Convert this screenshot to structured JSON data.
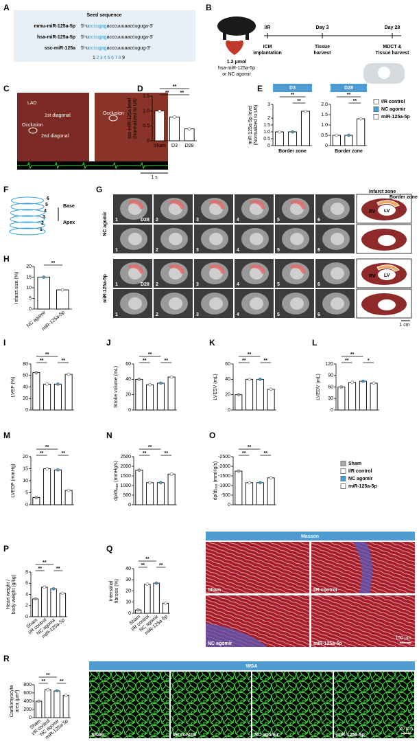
{
  "panel_a": {
    "letter": "A",
    "heading": "Seed sequence",
    "rows": [
      {
        "name": "mmu-miR-125a-5p",
        "prefix": "5'-u",
        "seed": "cccugag",
        "rest": "acccuuuaaccuguga-3'"
      },
      {
        "name": "hsa-miR-125a-5p",
        "prefix": "5'-u",
        "seed": "cccugag",
        "rest": "acccuuuaaccuguga-3'"
      },
      {
        "name": "ssc-miR-125a",
        "prefix": "5'-u",
        "seed": "cccugag",
        "rest": "acccuuuaaccugug-3'"
      }
    ],
    "positions": [
      "1",
      "2345678",
      "9"
    ]
  },
  "panel_b": {
    "letter": "B",
    "dose": [
      "1.2 μmol",
      "hsa-miR-125a-5p",
      "or NC agomir"
    ],
    "timeline": [
      {
        "top": "I/R",
        "bottom": [
          "ICM",
          "implantation"
        ]
      },
      {
        "top": "Day 3",
        "bottom": [
          "Tissue",
          "harvest"
        ]
      },
      {
        "top": "Day 28",
        "bottom": [
          "MDCT &",
          "Tissue harvest"
        ]
      }
    ]
  },
  "panel_c": {
    "letter": "C",
    "labels": [
      "LAD",
      "1st diagonal",
      "Occlusion",
      "2nd diagonal",
      "Occlusion"
    ],
    "scale": "1 s"
  },
  "panel_f": {
    "letter": "F",
    "slices": [
      "1",
      "2",
      "3",
      "4",
      "5",
      "6"
    ],
    "base": "Base",
    "apex": "Apex"
  },
  "panel_g": {
    "letter": "G",
    "groups": [
      "NC agomir",
      "miR-125a-5p"
    ],
    "slices": [
      "1",
      "2",
      "3",
      "4",
      "5",
      "6"
    ],
    "day": "D28",
    "zones": [
      "Infarct zone",
      "Border zone"
    ],
    "chambers": [
      "RV",
      "LV"
    ],
    "scale": "1 cm"
  },
  "charts": [
    {
      "type": "bar",
      "letter": "D",
      "ylabel": [
        "ssc-miR-125a level",
        "(Normalized to U6)"
      ],
      "categories": [
        "Sham",
        "D3",
        "D28"
      ],
      "values": [
        1.0,
        0.8,
        0.4
      ],
      "colors": [
        "#ffffff",
        "#ffffff",
        "#ffffff"
      ],
      "ylim": [
        0,
        1.5
      ],
      "yticks": [
        0,
        0.5,
        {
          "value": 1.0,
          "label": "1.0"
        },
        1.5
      ],
      "annotations": [
        "**",
        "**",
        "**"
      ]
    },
    {
      "type": "bar",
      "letter": "E",
      "header": "D3",
      "ylabel": [
        "miR-125a-5p level",
        "(Normalized to U6)"
      ],
      "xlabel": "Border zone",
      "categories": [
        null,
        null,
        null
      ],
      "values": [
        1.0,
        1.0,
        2.5
      ],
      "colors": [
        "#ffffff",
        "#3aa0d8",
        "#ffffff"
      ],
      "ylim": [
        0,
        3
      ],
      "yticks": [
        0,
        0.5,
        {
          "value": 1.0,
          "label": "1.0"
        },
        1.5,
        2,
        3
      ],
      "annotations": [
        "**",
        "**"
      ]
    },
    {
      "type": "bar",
      "header": "D28",
      "xlabel": "Border zone",
      "categories": [
        null,
        null,
        null
      ],
      "values": [
        0.5,
        0.5,
        1.3
      ],
      "colors": [
        "#ffffff",
        "#3aa0d8",
        "#ffffff"
      ],
      "ylim": [
        0,
        2
      ],
      "yticks": [
        0,
        0.5,
        {
          "value": 1.0,
          "label": "1.0"
        },
        1.5,
        {
          "value": 2,
          "label": "2.0"
        }
      ],
      "annotations": [
        "**",
        "**"
      ]
    },
    {
      "type": "bar",
      "letter": "H",
      "ylabel": [
        "Infarct size (%)"
      ],
      "categories": [
        "NC agomir",
        "miR-125a-5p"
      ],
      "values": [
        15,
        9
      ],
      "colors": [
        "#3aa0d8",
        "#ffffff"
      ],
      "ylim": [
        0,
        20
      ],
      "yticks": [
        0,
        5,
        10,
        15,
        20
      ],
      "annotations": [
        "**"
      ]
    },
    {
      "type": "bar",
      "letter": "I",
      "ylabel": [
        "LVEF (%)"
      ],
      "categories": [
        null,
        null,
        null,
        null
      ],
      "values": [
        65,
        45,
        45,
        62
      ],
      "colors": [
        "#aaaaaa",
        "#ffffff",
        "#3aa0d8",
        "#ffffff"
      ],
      "ylim": [
        0,
        80
      ],
      "yticks": [
        0,
        20,
        40,
        60,
        80
      ],
      "annotations": [
        "**",
        "**",
        "**"
      ]
    },
    {
      "type": "bar",
      "letter": "J",
      "ylabel": [
        "Stroke volume (mL)"
      ],
      "categories": [
        null,
        null,
        null,
        null
      ],
      "values": [
        40,
        33,
        35,
        43
      ],
      "colors": [
        "#aaaaaa",
        "#ffffff",
        "#3aa0d8",
        "#ffffff"
      ],
      "ylim": [
        0,
        60
      ],
      "yticks": [
        0,
        20,
        40,
        60
      ],
      "annotations": [
        "**",
        "**",
        "**"
      ]
    },
    {
      "type": "bar",
      "letter": "K",
      "ylabel": [
        "LVESV (mL)"
      ],
      "categories": [
        null,
        null,
        null,
        null
      ],
      "values": [
        20,
        40,
        40,
        27
      ],
      "colors": [
        "#aaaaaa",
        "#ffffff",
        "#3aa0d8",
        "#ffffff"
      ],
      "ylim": [
        0,
        60
      ],
      "yticks": [
        0,
        20,
        40,
        60
      ],
      "annotations": [
        "**",
        "**",
        "**"
      ]
    },
    {
      "type": "bar",
      "letter": "L",
      "ylabel": [
        "LVEDV (mL)"
      ],
      "categories": [
        null,
        null,
        null,
        null
      ],
      "values": [
        60,
        72,
        75,
        70
      ],
      "colors": [
        "#aaaaaa",
        "#ffffff",
        "#3aa0d8",
        "#ffffff"
      ],
      "ylim": [
        0,
        120
      ],
      "yticks": [
        0,
        30,
        60,
        90,
        120
      ],
      "annotations": [
        "**",
        "**",
        "*"
      ]
    },
    {
      "type": "bar",
      "letter": "M",
      "ylabel": [
        "LVEDP (mmHg)"
      ],
      "categories": [
        null,
        null,
        null,
        null
      ],
      "values": [
        3,
        15,
        14.5,
        6
      ],
      "colors": [
        "#aaaaaa",
        "#ffffff",
        "#3aa0d8",
        "#ffffff"
      ],
      "ylim": [
        0,
        20
      ],
      "yticks": [
        0,
        5,
        10,
        15,
        20
      ],
      "annotations": [
        "**",
        "**",
        "**"
      ]
    },
    {
      "type": "bar",
      "letter": "N",
      "ylabel": [
        "dp/dt",
        "(mmHg/s)"
      ],
      "ylabel_sub": "max",
      "categories": [
        null,
        null,
        null,
        null
      ],
      "values": [
        1800,
        1150,
        1150,
        1600
      ],
      "colors": [
        "#aaaaaa",
        "#ffffff",
        "#3aa0d8",
        "#ffffff"
      ],
      "ylim": [
        0,
        2500
      ],
      "yticks": [
        0,
        500,
        1000,
        1500,
        2000,
        2500
      ],
      "annotations": [
        "**",
        "**",
        "**"
      ]
    },
    {
      "type": "bar",
      "letter": "O",
      "ylabel": [
        "dp/dt",
        "(mmHg/s)"
      ],
      "ylabel_sub": "min",
      "categories": [
        null,
        null,
        null,
        null
      ],
      "values": [
        -1750,
        -1150,
        -1150,
        -1400
      ],
      "colors": [
        "#aaaaaa",
        "#ffffff",
        "#3aa0d8",
        "#ffffff"
      ],
      "ylim": [
        0,
        -2500
      ],
      "yticks": [
        0,
        -500,
        -1000,
        -1500,
        -2000,
        -2500
      ],
      "annotations": [
        "**",
        "**",
        "**"
      ]
    },
    {
      "type": "bar",
      "letter": "P",
      "ylabel": [
        "Heart weight /",
        "body weight (g/kg)"
      ],
      "categories": [
        "Sham",
        "I/R control",
        "NC agomir",
        "miR-125a-5p"
      ],
      "values": [
        3.2,
        5.3,
        5.0,
        4.2
      ],
      "colors": [
        "#aaaaaa",
        "#ffffff",
        "#3aa0d8",
        "#ffffff"
      ],
      "ylim": [
        0,
        8
      ],
      "yticks": [
        0,
        2,
        4,
        6,
        8
      ],
      "annotations": [
        "**",
        "**",
        "**"
      ]
    },
    {
      "type": "bar",
      "letter": "Q",
      "ylabel": [
        "Interstitial",
        "fibrosis (%)"
      ],
      "categories": [
        "Sham",
        "I/R control",
        "NC agomir",
        "miR-125a-5p"
      ],
      "values": [
        3,
        26,
        27,
        9
      ],
      "colors": [
        "#aaaaaa",
        "#ffffff",
        "#3aa0d8",
        "#ffffff"
      ],
      "ylim": [
        0,
        40
      ],
      "yticks": [
        0,
        10,
        20,
        30,
        40
      ],
      "annotations": [
        "**",
        "**",
        "**"
      ]
    },
    {
      "type": "bar",
      "letter": "R",
      "ylabel": [
        "Cardiomyocyte",
        "area (μm²)"
      ],
      "categories": [
        "Sham",
        "I/R control",
        "NC agomir",
        "miR-125a-5p"
      ],
      "values": [
        400,
        680,
        650,
        540
      ],
      "colors": [
        "#aaaaaa",
        "#ffffff",
        "#3aa0d8",
        "#ffffff"
      ],
      "ylim": [
        0,
        800
      ],
      "yticks": [
        0,
        200,
        400,
        600,
        800
      ],
      "annotations": [
        "**",
        "**",
        "**"
      ]
    }
  ],
  "legend_e": {
    "names": [
      "I/R control",
      "NC agomir",
      "miR-125a-5p"
    ],
    "colors": [
      "#ffffff",
      "#3aa0d8",
      "#ffffff"
    ]
  },
  "legend_hemo": {
    "names": [
      "Sham",
      "I/R control",
      "NC agomir",
      "miR-125a-5p"
    ],
    "colors": [
      "#aaaaaa",
      "#ffffff",
      "#3aa0d8",
      "#ffffff"
    ]
  },
  "masson": {
    "title": "Masson",
    "labels": [
      "Sham",
      "I/R control",
      "NC agomir",
      "miR-125a-5p"
    ],
    "scale": "150 μm"
  },
  "wga": {
    "title": "WGA",
    "labels": [
      "Sham",
      "I/R control",
      "NC agomir",
      "miR-125a-5p"
    ],
    "scale": "30 μm"
  }
}
